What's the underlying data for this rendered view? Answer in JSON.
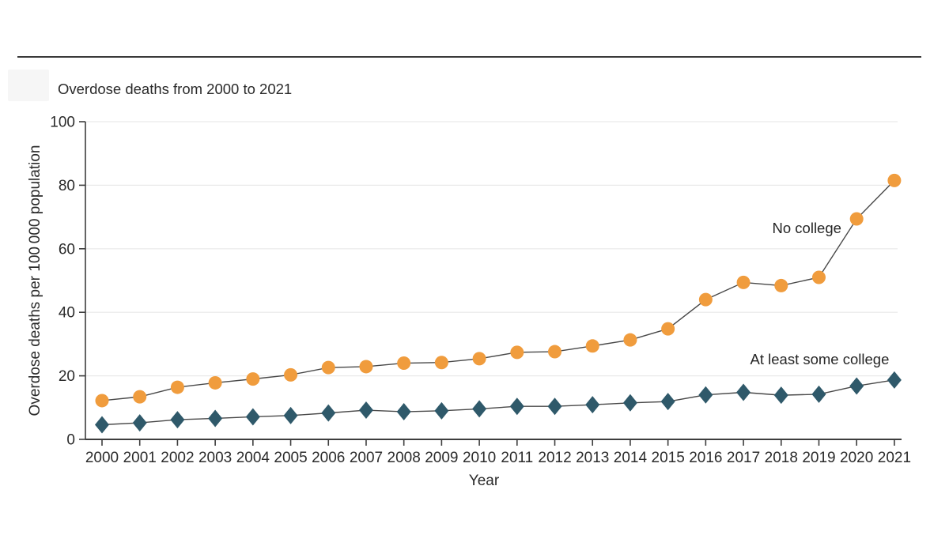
{
  "header": {
    "rule_color": "#3a3a3a"
  },
  "chart_data": {
    "type": "line",
    "title": "Overdose deaths from 2000 to 2021",
    "xlabel": "Year",
    "ylabel": "Overdose deaths per 100 000 population",
    "ylim": [
      0,
      100
    ],
    "yticks": [
      0,
      20,
      40,
      60,
      80,
      100
    ],
    "grid": "horizontal",
    "legend_position": "inline-labels",
    "x": [
      2000,
      2001,
      2002,
      2003,
      2004,
      2005,
      2006,
      2007,
      2008,
      2009,
      2010,
      2011,
      2012,
      2013,
      2014,
      2015,
      2016,
      2017,
      2018,
      2019,
      2020,
      2021
    ],
    "series": [
      {
        "name": "No college",
        "marker": "circle",
        "color": "#F09C3D",
        "values": [
          12.2,
          13.4,
          16.4,
          17.8,
          19.0,
          20.3,
          22.6,
          22.9,
          24.0,
          24.2,
          25.4,
          27.4,
          27.6,
          29.4,
          31.3,
          34.8,
          44.0,
          49.4,
          48.4,
          51.0,
          69.4,
          81.5
        ]
      },
      {
        "name": "At least some college",
        "marker": "diamond",
        "color": "#2F596A",
        "values": [
          4.6,
          5.2,
          6.2,
          6.6,
          7.1,
          7.5,
          8.3,
          9.2,
          8.7,
          9.0,
          9.6,
          10.4,
          10.4,
          10.9,
          11.5,
          11.9,
          14.0,
          14.8,
          13.9,
          14.2,
          16.8,
          18.7
        ]
      }
    ],
    "annotations": [
      {
        "text": "No college",
        "x": 2018.68,
        "y": 66.4
      },
      {
        "text": "At least some college",
        "x": 2019.02,
        "y": 25.1
      }
    ],
    "line_color": "#484848",
    "grid_color": "#e9e9e9",
    "axis_color": "#3d3d3d",
    "text_color": "#2b2b2b"
  }
}
